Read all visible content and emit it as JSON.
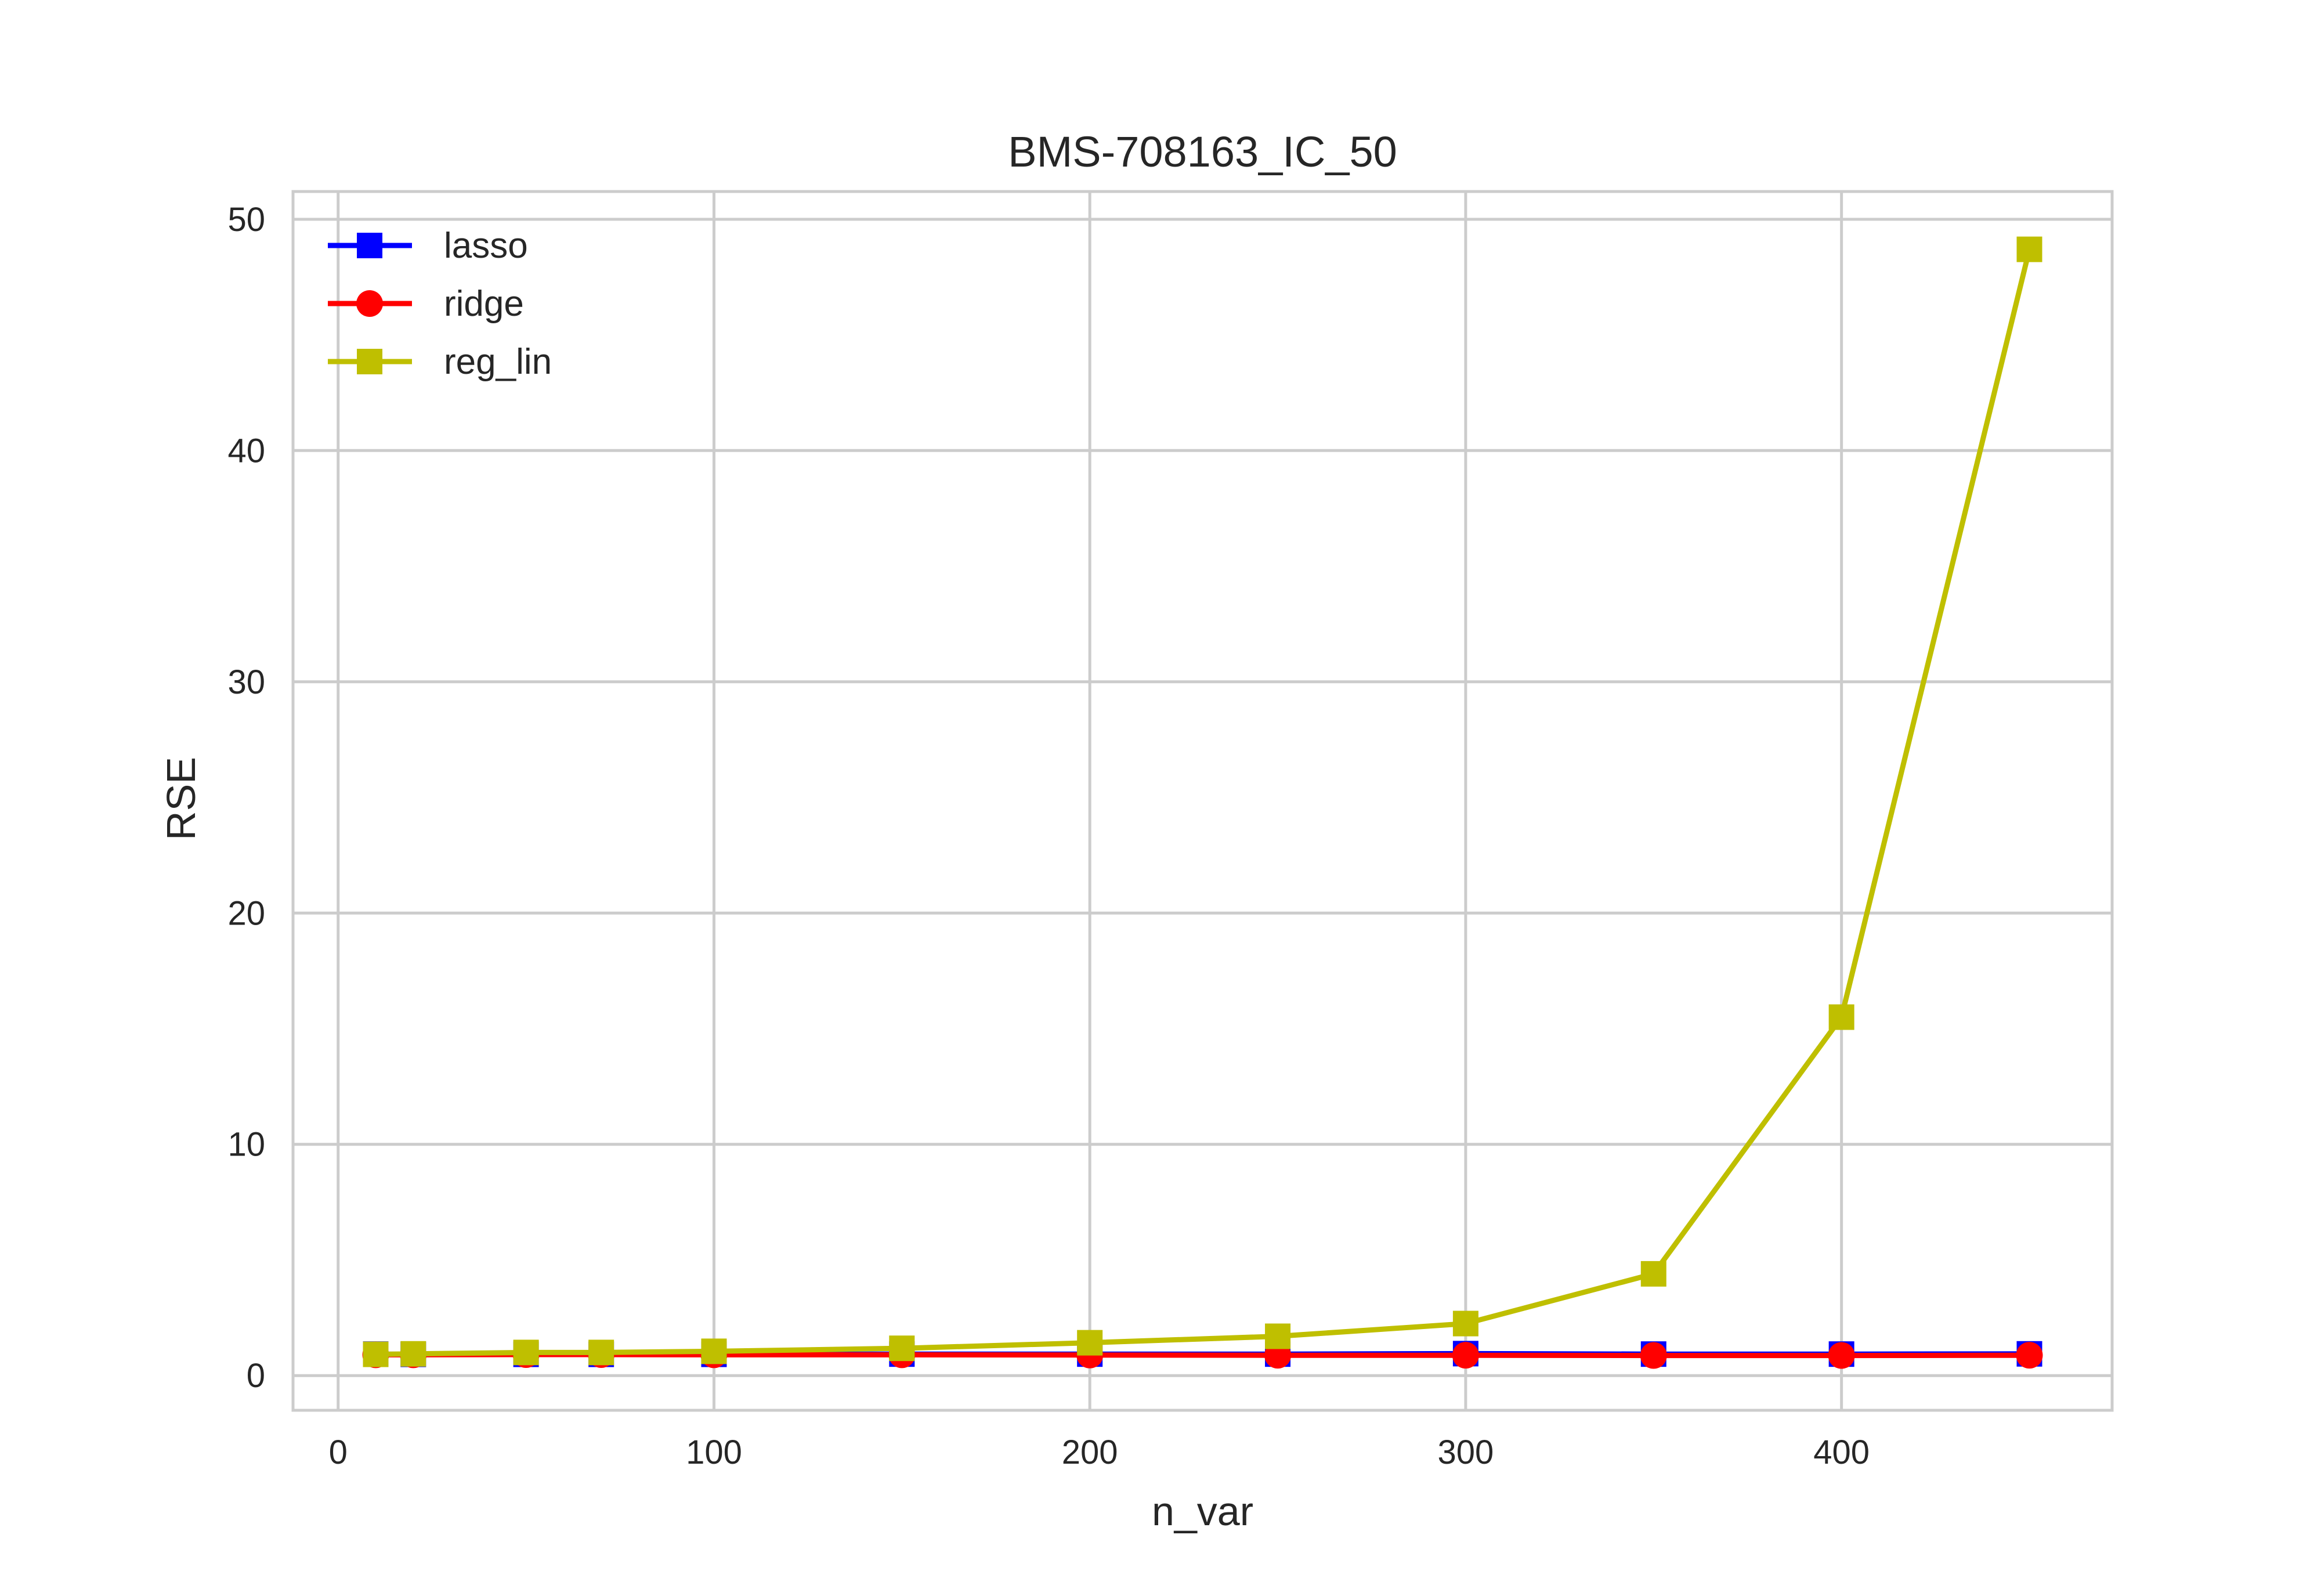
{
  "chart_data": {
    "type": "line",
    "title": "BMS-708163_IC_50",
    "xlabel": "n_var",
    "ylabel": "RSE",
    "xlim": [
      -12,
      472
    ],
    "ylim": [
      -1.5,
      51.2
    ],
    "xticks": [
      0,
      100,
      200,
      300,
      400
    ],
    "yticks": [
      0,
      10,
      20,
      30,
      40,
      50
    ],
    "grid": true,
    "legend_position": "top-left",
    "x": [
      10,
      20,
      50,
      70,
      100,
      150,
      200,
      250,
      300,
      350,
      400,
      450
    ],
    "series": [
      {
        "name": "lasso",
        "color": "#0000ff",
        "marker": "square",
        "values": [
          0.93,
          0.92,
          0.92,
          0.92,
          0.92,
          0.93,
          0.93,
          0.93,
          0.95,
          0.93,
          0.93,
          0.94
        ]
      },
      {
        "name": "ridge",
        "color": "#ff0000",
        "marker": "circle",
        "values": [
          0.9,
          0.9,
          0.91,
          0.91,
          0.9,
          0.9,
          0.89,
          0.88,
          0.88,
          0.87,
          0.87,
          0.88
        ]
      },
      {
        "name": "reg_lin",
        "color": "#bfbf00",
        "marker": "square",
        "values": [
          0.92,
          0.94,
          1.0,
          1.0,
          1.05,
          1.18,
          1.42,
          1.7,
          2.25,
          4.4,
          15.5,
          48.7
        ]
      }
    ]
  }
}
